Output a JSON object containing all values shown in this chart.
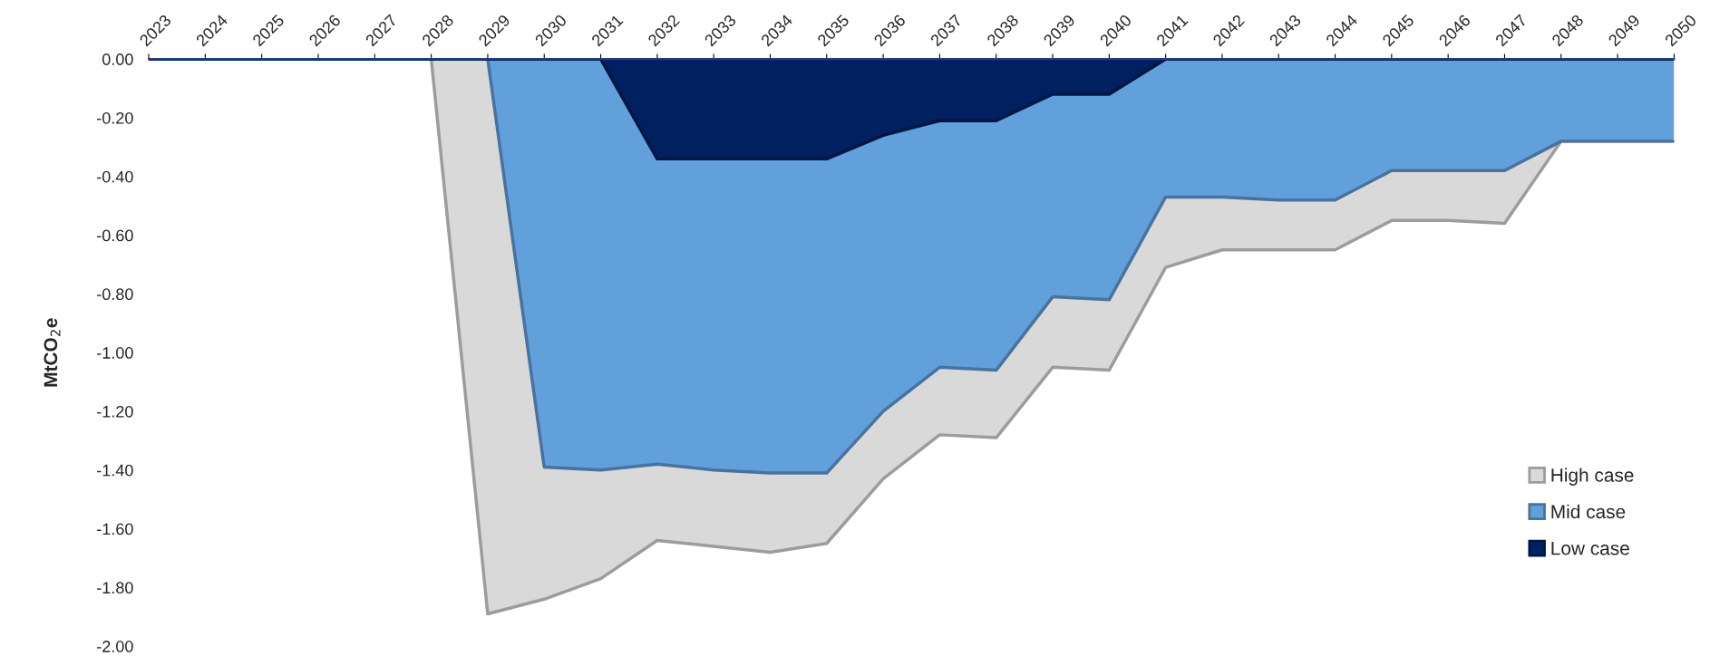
{
  "chart_data": {
    "type": "area",
    "ylabel": "MtCO$_{2}$e",
    "categories": [
      "2023",
      "2024",
      "2025",
      "2026",
      "2027",
      "2028",
      "2029",
      "2030",
      "2031",
      "2032",
      "2033",
      "2034",
      "2035",
      "2036",
      "2037",
      "2038",
      "2039",
      "2040",
      "2041",
      "2042",
      "2043",
      "2044",
      "2045",
      "2046",
      "2047",
      "2048",
      "2049",
      "2050"
    ],
    "series": [
      {
        "name": "High case",
        "color": "#d9d9d9",
        "values": [
          0,
          0,
          0,
          0,
          0,
          0,
          -1.89,
          -1.84,
          -1.77,
          -1.64,
          -1.66,
          -1.68,
          -1.65,
          -1.43,
          -1.28,
          -1.29,
          -1.05,
          -1.06,
          -0.71,
          -0.65,
          -0.65,
          -0.65,
          -0.55,
          -0.55,
          -0.56,
          -0.28,
          -0.28,
          -0.28
        ]
      },
      {
        "name": "Mid case",
        "color": "#62a0dc",
        "values": [
          0,
          0,
          0,
          0,
          0,
          0,
          0,
          -1.39,
          -1.4,
          -1.38,
          -1.4,
          -1.41,
          -1.41,
          -1.2,
          -1.05,
          -1.06,
          -0.81,
          -0.82,
          -0.47,
          -0.47,
          -0.48,
          -0.48,
          -0.38,
          -0.38,
          -0.38,
          -0.28,
          -0.28,
          -0.28
        ]
      },
      {
        "name": "Low case",
        "color": "#002060",
        "values": [
          0,
          0,
          0,
          0,
          0,
          0,
          0,
          0,
          0,
          -0.34,
          -0.34,
          -0.34,
          -0.34,
          -0.26,
          -0.21,
          -0.21,
          -0.12,
          -0.12,
          0,
          0,
          0,
          0,
          0,
          0,
          0,
          0,
          0,
          0
        ]
      }
    ],
    "ylim": [
      -2,
      0
    ],
    "yticks": [
      {
        "value": 0,
        "label": "0.00"
      },
      {
        "value": -0.2,
        "label": "-0.20"
      },
      {
        "value": -0.4,
        "label": "-0.40"
      },
      {
        "value": -0.6,
        "label": "-0.60"
      },
      {
        "value": -0.8,
        "label": "-0.80"
      },
      {
        "value": -1.0,
        "label": "-1.00"
      },
      {
        "value": -1.2,
        "label": "-1.20"
      },
      {
        "value": -1.4,
        "label": "-1.40"
      },
      {
        "value": -1.6,
        "label": "-1.60"
      },
      {
        "value": -1.8,
        "label": "-1.80"
      },
      {
        "value": -2.0,
        "label": "-2.00"
      }
    ],
    "legend": "bottom right",
    "grid": false
  }
}
